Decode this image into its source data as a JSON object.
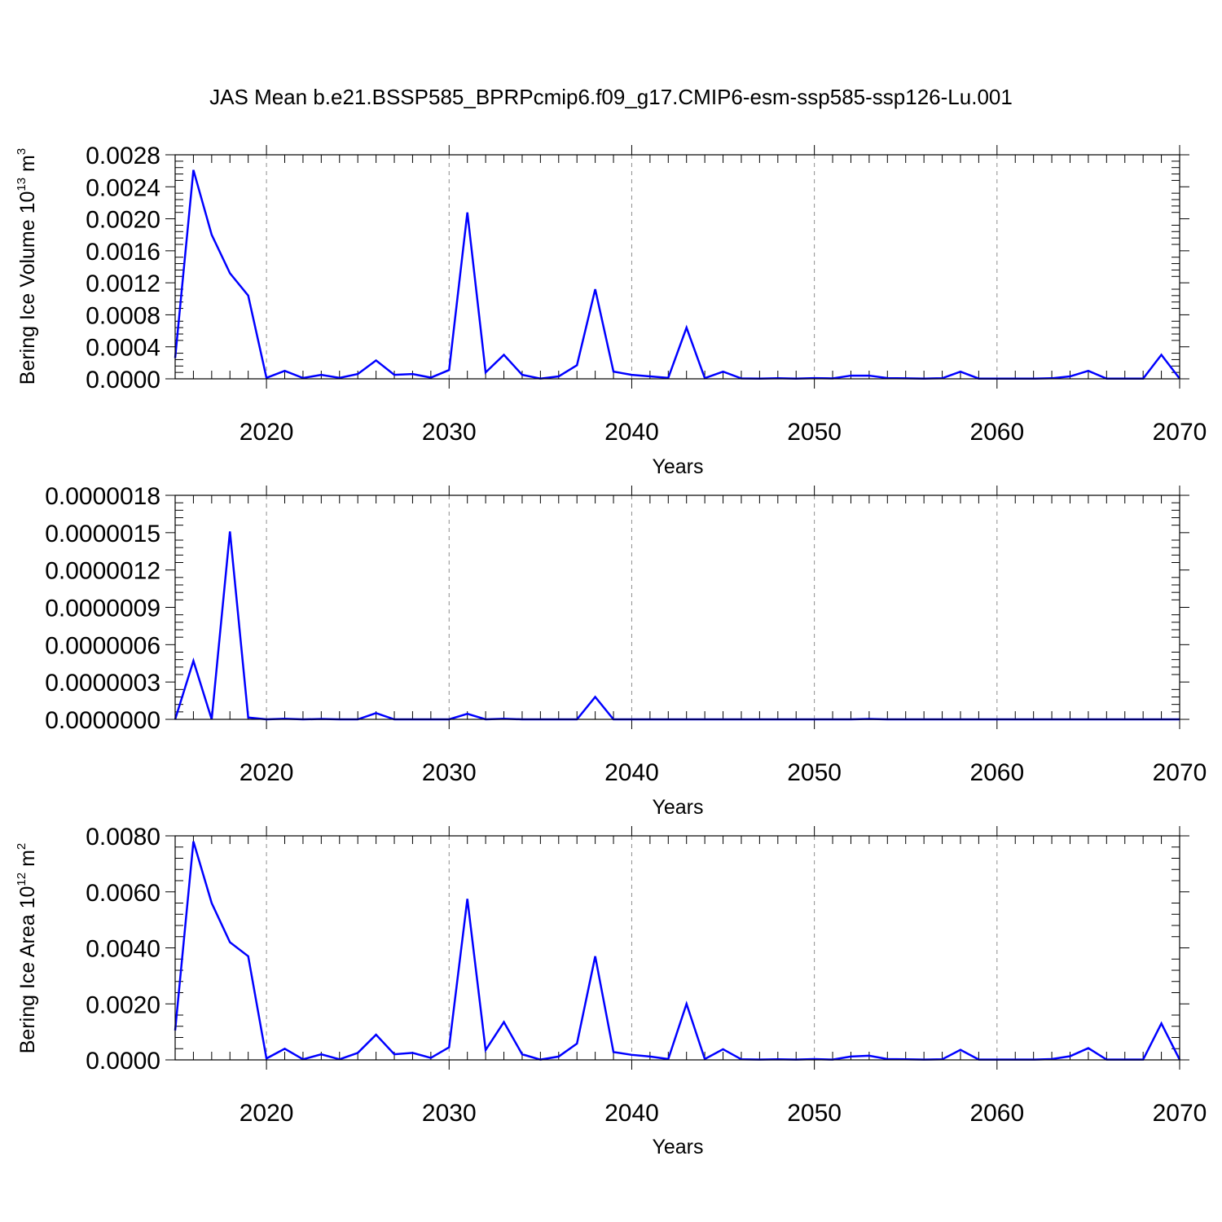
{
  "title": "JAS Mean b.e21.BSSP585_BPRPcmip6.f09_g17.CMIP6-esm-ssp585-ssp126-Lu.001",
  "chart_data": [
    {
      "type": "line",
      "ylabel": {
        "main": "Bering Ice Volume 10",
        "sup": "13",
        "unit": " m",
        "unit_sup": "3"
      },
      "xlabel": "Years",
      "xlim": [
        2015,
        2070
      ],
      "ylim": [
        0,
        0.0028
      ],
      "xticks": [
        2020,
        2030,
        2040,
        2050,
        2060,
        2070
      ],
      "yticks": [
        0.0,
        0.0004,
        0.0008,
        0.0012,
        0.0016,
        0.002,
        0.0024,
        0.0028
      ],
      "ytick_labels": [
        "0.0000",
        "0.0004",
        "0.0008",
        "0.0012",
        "0.0016",
        "0.0020",
        "0.0024",
        "0.0028"
      ],
      "color": "#0000ff",
      "grid": "dashed vertical at major x ticks",
      "x": [
        2015,
        2016,
        2017,
        2018,
        2019,
        2020,
        2021,
        2022,
        2023,
        2024,
        2025,
        2026,
        2027,
        2028,
        2029,
        2030,
        2031,
        2032,
        2033,
        2034,
        2035,
        2036,
        2037,
        2038,
        2039,
        2040,
        2041,
        2042,
        2043,
        2044,
        2045,
        2046,
        2047,
        2048,
        2049,
        2050,
        2051,
        2052,
        2053,
        2054,
        2055,
        2056,
        2057,
        2058,
        2059,
        2060,
        2061,
        2062,
        2063,
        2064,
        2065,
        2066,
        2067,
        2068,
        2069,
        2070
      ],
      "y": [
        0.00026,
        0.00261,
        0.0018,
        0.00132,
        0.00104,
        1.2e-05,
        0.0001,
        1e-05,
        5e-05,
        1.2e-05,
        6e-05,
        0.00023,
        5e-05,
        6e-05,
        1.5e-05,
        0.00011,
        0.00208,
        8e-05,
        0.0003,
        5e-05,
        3e-06,
        3e-05,
        0.00017,
        0.00112,
        9e-05,
        5e-05,
        3e-05,
        1.2e-05,
        0.00064,
        8e-06,
        9e-05,
        5e-06,
        2e-06,
        8e-06,
        3e-06,
        9e-06,
        5e-06,
        4e-05,
        4e-05,
        9e-06,
        6e-06,
        3e-06,
        7e-06,
        9e-05,
        3e-06,
        2e-06,
        2e-06,
        2e-06,
        7e-06,
        3e-05,
        0.0001,
        2e-06,
        2e-06,
        2e-06,
        0.0003,
        2e-06
      ]
    },
    {
      "type": "line",
      "ylabel": "",
      "xlabel": "Years",
      "xlim": [
        2015,
        2070
      ],
      "ylim": [
        0,
        1.8e-06
      ],
      "xticks": [
        2020,
        2030,
        2040,
        2050,
        2060,
        2070
      ],
      "yticks": [
        0.0,
        3e-07,
        6e-07,
        9e-07,
        1.2e-06,
        1.5e-06,
        1.8e-06
      ],
      "ytick_labels": [
        "0.0000000",
        "0.0000003",
        "0.0000006",
        "0.0000009",
        "0.0000012",
        "0.0000015",
        "0.0000018"
      ],
      "color": "#0000ff",
      "grid": "dashed vertical at major x ticks",
      "x": [
        2015,
        2016,
        2017,
        2018,
        2019,
        2020,
        2021,
        2022,
        2023,
        2024,
        2025,
        2026,
        2027,
        2028,
        2029,
        2030,
        2031,
        2032,
        2033,
        2034,
        2035,
        2036,
        2037,
        2038,
        2039,
        2040,
        2041,
        2042,
        2043,
        2044,
        2045,
        2046,
        2047,
        2048,
        2049,
        2050,
        2051,
        2052,
        2053,
        2054,
        2055,
        2056,
        2057,
        2058,
        2059,
        2060,
        2061,
        2062,
        2063,
        2064,
        2065,
        2066,
        2067,
        2068,
        2069,
        2070
      ],
      "y": [
        0.0,
        4.7e-07,
        0.0,
        1.51e-06,
        1.5e-08,
        0.0,
        5e-09,
        0.0,
        3e-09,
        0.0,
        0.0,
        5e-08,
        0.0,
        0.0,
        0.0,
        0.0,
        4.5e-08,
        0.0,
        5e-09,
        0.0,
        0.0,
        0.0,
        0.0,
        1.8e-07,
        0.0,
        0.0,
        0.0,
        0.0,
        0.0,
        0.0,
        0.0,
        0.0,
        0.0,
        0.0,
        0.0,
        0.0,
        0.0,
        0.0,
        3e-09,
        0.0,
        0.0,
        0.0,
        0.0,
        0.0,
        0.0,
        0.0,
        0.0,
        0.0,
        0.0,
        0.0,
        0.0,
        0.0,
        0.0,
        0.0,
        0.0,
        0.0
      ]
    },
    {
      "type": "line",
      "ylabel": {
        "main": "Bering Ice Area 10",
        "sup": "12",
        "unit": " m",
        "unit_sup": "2"
      },
      "xlabel": "Years",
      "xlim": [
        2015,
        2070
      ],
      "ylim": [
        0,
        0.008
      ],
      "xticks": [
        2020,
        2030,
        2040,
        2050,
        2060,
        2070
      ],
      "yticks": [
        0.0,
        0.002,
        0.004,
        0.006,
        0.008
      ],
      "ytick_labels": [
        "0.0000",
        "0.0020",
        "0.0040",
        "0.0060",
        "0.0080"
      ],
      "color": "#0000ff",
      "grid": "dashed vertical at major x ticks",
      "x": [
        2015,
        2016,
        2017,
        2018,
        2019,
        2020,
        2021,
        2022,
        2023,
        2024,
        2025,
        2026,
        2027,
        2028,
        2029,
        2030,
        2031,
        2032,
        2033,
        2034,
        2035,
        2036,
        2037,
        2038,
        2039,
        2040,
        2041,
        2042,
        2043,
        2044,
        2045,
        2046,
        2047,
        2048,
        2049,
        2050,
        2051,
        2052,
        2053,
        2054,
        2055,
        2056,
        2057,
        2058,
        2059,
        2060,
        2061,
        2062,
        2063,
        2064,
        2065,
        2066,
        2067,
        2068,
        2069,
        2070
      ],
      "y": [
        0.00105,
        0.0078,
        0.0056,
        0.0042,
        0.0037,
        5e-05,
        0.0004,
        2e-05,
        0.0002,
        2e-05,
        0.00025,
        0.0009,
        0.0002,
        0.00025,
        7e-05,
        0.00045,
        0.00575,
        0.00035,
        0.00135,
        0.0002,
        1e-05,
        0.00012,
        0.00058,
        0.0037,
        0.00028,
        0.00018,
        0.00012,
        3e-05,
        0.002,
        3e-05,
        0.00038,
        2e-05,
        1e-05,
        2e-05,
        1e-05,
        3e-05,
        1e-05,
        0.00012,
        0.00015,
        3e-05,
        2e-05,
        1e-05,
        2e-05,
        0.00036,
        1e-05,
        1e-05,
        1e-05,
        1e-05,
        3e-05,
        0.00013,
        0.00042,
        1e-05,
        1e-05,
        1e-05,
        0.0013,
        1e-05
      ]
    }
  ]
}
